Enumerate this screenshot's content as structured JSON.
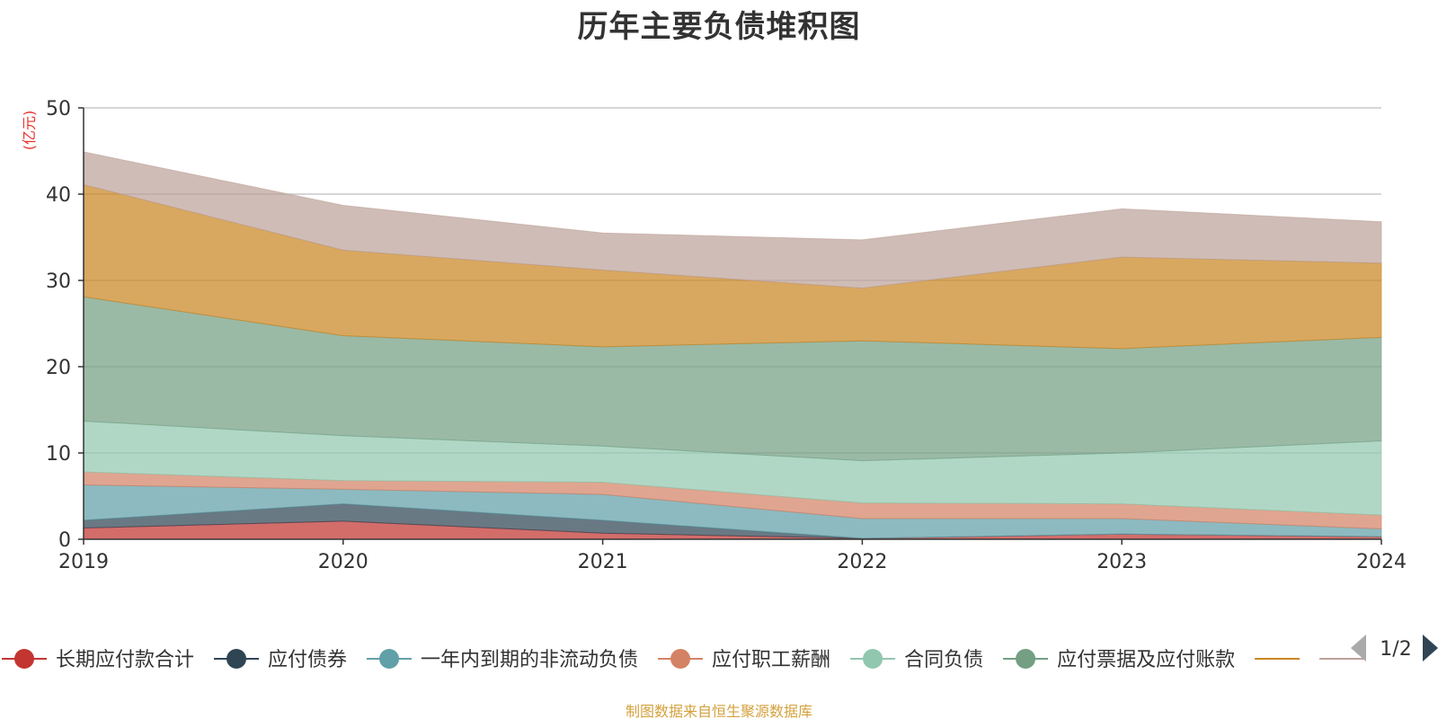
{
  "chart_data": {
    "type": "area",
    "title": "历年主要负债堆积图",
    "ylabel": "(亿元)",
    "ylim": [
      0,
      50
    ],
    "y_ticks": [
      "0",
      "10",
      "20",
      "30",
      "40",
      "50"
    ],
    "grid": true,
    "stacked": true,
    "categories": [
      "2019",
      "2020",
      "2021",
      "2022",
      "2023",
      "2024"
    ],
    "series": [
      {
        "name": "长期应付款合计",
        "color": "#c23531",
        "values": [
          1.3,
          2.1,
          0.7,
          0.1,
          0.6,
          0.3
        ]
      },
      {
        "name": "应付债券",
        "color": "#2f4554",
        "values": [
          0.9,
          2.0,
          1.5,
          0.0,
          0.0,
          0.0
        ]
      },
      {
        "name": "一年内到期的非流动负债",
        "color": "#61a0a8",
        "values": [
          4.1,
          1.7,
          3.0,
          2.3,
          1.8,
          0.9
        ]
      },
      {
        "name": "应付职工薪酬",
        "color": "#d48265",
        "values": [
          1.5,
          1.0,
          1.4,
          1.8,
          1.7,
          1.6
        ]
      },
      {
        "name": "合同负债",
        "color": "#91c7ae",
        "values": [
          5.9,
          5.2,
          4.2,
          4.9,
          5.9,
          8.6
        ]
      },
      {
        "name": "应付票据及应付账款",
        "color": "#749f83",
        "values": [
          14.4,
          11.6,
          11.5,
          13.9,
          12.1,
          12.0
        ]
      },
      {
        "name": "",
        "color": "#ca8622",
        "values": [
          13.0,
          9.9,
          8.9,
          6.1,
          10.6,
          8.6
        ]
      },
      {
        "name": "",
        "color": "#bda29a",
        "values": [
          3.8,
          5.2,
          4.3,
          5.6,
          5.6,
          4.8
        ]
      }
    ],
    "legend": {
      "position": "bottom",
      "page": "1/2"
    }
  },
  "footer": {
    "source": "制图数据来自恒生聚源数据库"
  }
}
